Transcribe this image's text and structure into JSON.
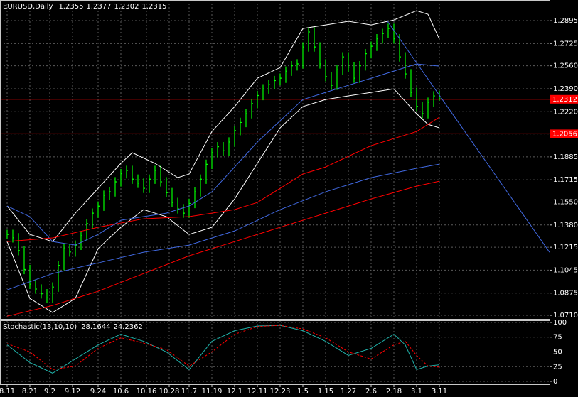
{
  "chart_data": [
    {
      "type": "ohlc",
      "title": "EURUSD,Daily",
      "last_open": 1.2355,
      "color": "#00ff00",
      "grid": true,
      "xlim": [
        -2.5,
        190.75
      ],
      "ylim": [
        1.0684,
        1.3048
      ],
      "xticks": [
        {
          "value": 0,
          "label": "8.11"
        },
        {
          "value": 8,
          "label": "8.21"
        },
        {
          "value": 15,
          "label": "9.2"
        },
        {
          "value": 23,
          "label": "9.12"
        },
        {
          "value": 32,
          "label": "9.24"
        },
        {
          "value": 40,
          "label": "10.6"
        },
        {
          "value": 49,
          "label": "10.16"
        },
        {
          "value": 57,
          "label": "10.28"
        },
        {
          "value": 64,
          "label": "11.7"
        },
        {
          "value": 72,
          "label": "11.19"
        },
        {
          "value": 80,
          "label": "12.1"
        },
        {
          "value": 88,
          "label": "12.11"
        },
        {
          "value": 96,
          "label": "12.23"
        },
        {
          "value": 104,
          "label": "1.5"
        },
        {
          "value": 112,
          "label": "1.15"
        },
        {
          "value": 120,
          "label": "1.27"
        },
        {
          "value": 128,
          "label": "2.6"
        },
        {
          "value": 136,
          "label": "2.18"
        },
        {
          "value": 144,
          "label": "3.1"
        },
        {
          "value": 152,
          "label": "3.11"
        }
      ],
      "yticks": [
        1.2895,
        1.2725,
        {
          "value": 1.256,
          "label": "1.2560"
        },
        {
          "value": 1.239,
          "label": "1.2390"
        },
        {
          "value": 1.222,
          "label": "1.2220"
        },
        1.2055,
        1.1885,
        1.1715,
        {
          "value": 1.155,
          "label": "1.1550"
        },
        {
          "value": 1.138,
          "label": "1.1380"
        },
        1.1215,
        1.1045,
        1.0875,
        {
          "value": 1.071,
          "label": "1.0710"
        }
      ],
      "levels": [
        1.2312,
        1.2056
      ],
      "level_color": "#ff0000",
      "x": [
        0,
        2,
        4,
        6,
        8,
        10,
        12,
        14,
        16,
        18,
        20,
        22,
        24,
        26,
        28,
        30,
        32,
        34,
        36,
        38,
        40,
        42,
        44,
        46,
        48,
        50,
        52,
        54,
        56,
        58,
        60,
        62,
        64,
        66,
        68,
        70,
        72,
        74,
        76,
        78,
        80,
        82,
        84,
        86,
        88,
        90,
        92,
        94,
        96,
        98,
        100,
        102,
        104,
        106,
        108,
        110,
        112,
        114,
        116,
        118,
        120,
        122,
        124,
        126,
        128,
        130,
        132,
        134,
        136,
        138,
        140,
        142,
        144,
        146,
        148,
        150,
        152
      ],
      "high": [
        1.1345,
        1.1345,
        1.132,
        1.1225,
        1.1085,
        1.0976,
        1.094,
        1.0905,
        1.0955,
        1.1115,
        1.124,
        1.124,
        1.1265,
        1.1335,
        1.1425,
        1.1503,
        1.1555,
        1.1635,
        1.1661,
        1.1735,
        1.1795,
        1.1819,
        1.1819,
        1.1755,
        1.1725,
        1.1755,
        1.1819,
        1.1819,
        1.1735,
        1.1655,
        1.1582,
        1.1535,
        1.1575,
        1.1661,
        1.1755,
        1.1865,
        1.1951,
        1.1995,
        1.1995,
        1.203,
        1.2115,
        1.2175,
        1.224,
        1.2315,
        1.2375,
        1.2424,
        1.2455,
        1.2485,
        1.2503,
        1.2555,
        1.2595,
        1.2609,
        1.2735,
        1.2846,
        1.2846,
        1.2735,
        1.2609,
        1.2515,
        1.2565,
        1.2661,
        1.2661,
        1.2585,
        1.2595,
        1.2685,
        1.274,
        1.2795,
        1.2835,
        1.2872,
        1.2872,
        1.2795,
        1.2661,
        1.2535,
        1.2398,
        1.2295,
        1.2325,
        1.2372,
        1.2377
      ],
      "low": [
        1.1275,
        1.125,
        1.1155,
        1.1015,
        1.0906,
        1.087,
        1.0835,
        1.0805,
        1.0805,
        1.0885,
        1.1045,
        1.1145,
        1.1145,
        1.1195,
        1.1265,
        1.1355,
        1.1433,
        1.1485,
        1.1565,
        1.1591,
        1.1665,
        1.1725,
        1.1685,
        1.1655,
        1.1617,
        1.1617,
        1.1685,
        1.1665,
        1.1585,
        1.1512,
        1.1465,
        1.1433,
        1.1433,
        1.1505,
        1.1591,
        1.1685,
        1.1795,
        1.1881,
        1.1895,
        1.1895,
        1.196,
        1.2045,
        1.2105,
        1.217,
        1.2245,
        1.2305,
        1.2354,
        1.2385,
        1.2415,
        1.2433,
        1.2485,
        1.2525,
        1.2539,
        1.2665,
        1.2665,
        1.2539,
        1.2445,
        1.2381,
        1.2381,
        1.2495,
        1.2515,
        1.2433,
        1.2433,
        1.2525,
        1.2615,
        1.267,
        1.2725,
        1.2765,
        1.2725,
        1.2591,
        1.2465,
        1.2328,
        1.2225,
        1.217,
        1.217,
        1.2255,
        1.2302
      ],
      "close": [
        1.131,
        1.1285,
        1.119,
        1.105,
        1.0941,
        1.0905,
        1.087,
        1.084,
        1.092,
        1.108,
        1.1205,
        1.118,
        1.123,
        1.13,
        1.139,
        1.1468,
        1.152,
        1.16,
        1.1626,
        1.17,
        1.176,
        1.1784,
        1.172,
        1.169,
        1.1652,
        1.172,
        1.1784,
        1.17,
        1.162,
        1.1547,
        1.15,
        1.1468,
        1.154,
        1.1626,
        1.172,
        1.183,
        1.1916,
        1.196,
        1.193,
        1.1995,
        1.208,
        1.214,
        1.2205,
        1.228,
        1.234,
        1.2389,
        1.242,
        1.245,
        1.2468,
        1.252,
        1.256,
        1.2574,
        1.27,
        1.2811,
        1.27,
        1.2574,
        1.248,
        1.2416,
        1.253,
        1.2626,
        1.255,
        1.2468,
        1.256,
        1.265,
        1.2705,
        1.276,
        1.28,
        1.2837,
        1.276,
        1.2626,
        1.25,
        1.2363,
        1.226,
        1.2205,
        1.229,
        1.2337,
        1.2315
      ],
      "series": [
        {
          "color": "#ffffff",
          "x": [
            0,
            8,
            16,
            24,
            32,
            40,
            44,
            52,
            60,
            64,
            72,
            80,
            88,
            96,
            104,
            112,
            120,
            128,
            136,
            144,
            148,
            152
          ],
          "values": [
            1.1521,
            1.131,
            1.1257,
            1.1468,
            1.1652,
            1.1837,
            1.1916,
            1.1837,
            1.1731,
            1.1758,
            1.2073,
            1.2258,
            1.2468,
            1.2547,
            1.2837,
            1.2863,
            1.289,
            1.2863,
            1.29,
            1.2969,
            1.2942,
            1.2758
          ]
        },
        {
          "color": "#ffffff",
          "x": [
            0,
            8,
            16,
            24,
            32,
            40,
            48,
            56,
            64,
            72,
            80,
            88,
            96,
            104,
            112,
            120,
            128,
            136,
            144,
            148,
            152
          ],
          "values": [
            1.1257,
            1.0836,
            1.0731,
            1.0836,
            1.1205,
            1.1363,
            1.1494,
            1.1442,
            1.131,
            1.1363,
            1.1573,
            1.1837,
            1.21,
            1.2258,
            1.231,
            1.2337,
            1.2363,
            1.2389,
            1.2205,
            1.2126,
            1.21
          ]
        },
        {
          "color": "#4169e1",
          "x": [
            0,
            8,
            16,
            24,
            32,
            40,
            48,
            56,
            64,
            72,
            80,
            88,
            96,
            104,
            112,
            120,
            128,
            136,
            144,
            152
          ],
          "values": [
            1.1521,
            1.1442,
            1.1257,
            1.1231,
            1.131,
            1.1415,
            1.1442,
            1.1468,
            1.1521,
            1.1626,
            1.181,
            1.1995,
            1.2153,
            1.231,
            1.2363,
            1.2416,
            1.2468,
            1.2521,
            1.2574,
            1.2558
          ]
        },
        {
          "color": "#ff0000",
          "x": [
            0,
            16,
            32,
            48,
            64,
            72,
            80,
            88,
            96,
            104,
            112,
            120,
            128,
            136,
            144,
            152
          ],
          "values": [
            1.1257,
            1.1284,
            1.1363,
            1.1426,
            1.1442,
            1.1468,
            1.1494,
            1.1547,
            1.1652,
            1.1758,
            1.181,
            1.1889,
            1.1968,
            1.2021,
            1.2073,
            1.2179
          ]
        },
        {
          "color": "#4169e1",
          "x": [
            0,
            16,
            32,
            48,
            64,
            80,
            96,
            112,
            128,
            144,
            152
          ],
          "values": [
            1.0899,
            1.102,
            1.1099,
            1.1178,
            1.1231,
            1.1336,
            1.1494,
            1.1626,
            1.1731,
            1.18,
            1.1831
          ]
        },
        {
          "color": "#ff0000",
          "x": [
            0,
            16,
            32,
            48,
            64,
            80,
            96,
            112,
            128,
            144,
            152
          ],
          "values": [
            1.0704,
            1.0783,
            1.0889,
            1.102,
            1.1152,
            1.1257,
            1.1363,
            1.1468,
            1.1573,
            1.1668,
            1.1705
          ]
        },
        {
          "color": "#4169e1",
          "x": [
            133.75,
            190.75
          ],
          "values": [
            1.289,
            1.1178
          ]
        }
      ]
    },
    {
      "type": "stochastic",
      "title": "Stochastic(13,10,10)",
      "grid": true,
      "xlim": [
        -2.5,
        190.75
      ],
      "ylim": [
        -4.8,
        103.6
      ],
      "yticks": [
        100,
        75,
        50,
        25,
        0
      ],
      "series": [
        {
          "color": "#20b2aa",
          "x": [
            0,
            8,
            16,
            24,
            32,
            40,
            48,
            56,
            64,
            72,
            80,
            88,
            96,
            104,
            112,
            120,
            128,
            136,
            140,
            144,
            148,
            152
          ],
          "values": [
            62,
            32,
            14,
            38,
            62,
            80,
            68,
            50,
            20,
            68,
            86,
            94,
            95,
            86,
            68,
            44,
            56,
            80,
            62,
            20,
            26,
            28.1644
          ]
        },
        {
          "color": "#ff0000",
          "dashed": true,
          "x": [
            0,
            8,
            16,
            24,
            32,
            40,
            48,
            56,
            64,
            72,
            80,
            88,
            96,
            104,
            112,
            120,
            128,
            136,
            140,
            144,
            148,
            152
          ],
          "values": [
            64,
            50,
            20,
            26,
            56,
            74,
            65,
            54,
            26,
            50,
            80,
            93,
            95,
            89,
            74,
            50,
            38,
            62,
            68,
            44,
            26,
            24.2362
          ]
        }
      ]
    }
  ]
}
